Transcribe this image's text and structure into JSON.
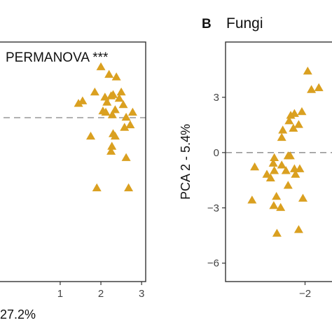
{
  "colors": {
    "marker": "#DAA020",
    "reference_line": "#999999",
    "frame": "#333333",
    "tick_text": "#444444"
  },
  "chart_data": [
    {
      "type": "scatter",
      "panel": "",
      "title": "",
      "annotation": "PERMANOVA ***",
      "xlabel": "27.2%",
      "ylabel": "",
      "xlim": [
        -0.65,
        3.1
      ],
      "ylim": [
        -6.5,
        3.0
      ],
      "xticks": [
        1,
        2,
        3
      ],
      "yticks": [],
      "reference_line_y": 0,
      "marker": "triangle",
      "series": [
        {
          "x": [
            2.0,
            1.45,
            1.55,
            2.2,
            2.38,
            2.5,
            1.85,
            2.1,
            2.25,
            2.3,
            2.15,
            2.45,
            2.55,
            2.05,
            2.12,
            2.35,
            2.78,
            2.28,
            2.62,
            2.58,
            2.72,
            2.3,
            2.35,
            1.75,
            2.27,
            2.25,
            2.62,
            1.9,
            2.68
          ],
          "y": [
            2.0,
            0.55,
            0.65,
            1.7,
            1.6,
            1.0,
            1.0,
            0.8,
            0.85,
            0.9,
            0.6,
            0.75,
            0.5,
            0.25,
            0.2,
            0.3,
            0.2,
            0.1,
            0.0,
            -0.4,
            -0.3,
            -0.65,
            -0.75,
            -0.75,
            -1.15,
            -1.35,
            -1.6,
            -2.8,
            -2.8
          ]
        }
      ]
    },
    {
      "type": "scatter",
      "panel": "B",
      "title": "Fungi",
      "annotation": "",
      "xlabel": "",
      "ylabel": "PCA 2 - 5.4%",
      "xlim": [
        -3.5,
        -1.28
      ],
      "ylim": [
        -7.0,
        6.0
      ],
      "xticks": [
        -2
      ],
      "yticks": [
        3,
        0,
        -3,
        -6
      ],
      "reference_line_y": 0,
      "marker": "triangle",
      "series": [
        {
          "x": [
            -1.95,
            -1.88,
            -1.74,
            -2.2,
            -2.27,
            -2.06,
            -2.3,
            -2.22,
            -2.42,
            -2.12,
            -2.44,
            -2.28,
            -2.58,
            -2.32,
            -2.6,
            -2.44,
            -2.2,
            -2.36,
            -2.18,
            -2.1,
            -2.65,
            -2.72,
            -2.32,
            -2.04,
            -2.54,
            -2.59,
            -2.46,
            -2.12,
            -2.53,
            -3.0,
            -2.58,
            -2.95
          ],
          "y": [
            4.4,
            3.4,
            3.5,
            2.1,
            2.0,
            2.2,
            1.7,
            1.3,
            1.2,
            1.5,
            0.8,
            -0.2,
            -0.3,
            -0.2,
            -0.6,
            -0.7,
            -0.9,
            -1.0,
            -1.2,
            -0.9,
            -1.4,
            -1.2,
            -1.8,
            -2.5,
            -2.4,
            -2.9,
            -3.0,
            -4.2,
            -4.4,
            -2.6,
            -1.0,
            -0.8
          ]
        }
      ]
    }
  ]
}
